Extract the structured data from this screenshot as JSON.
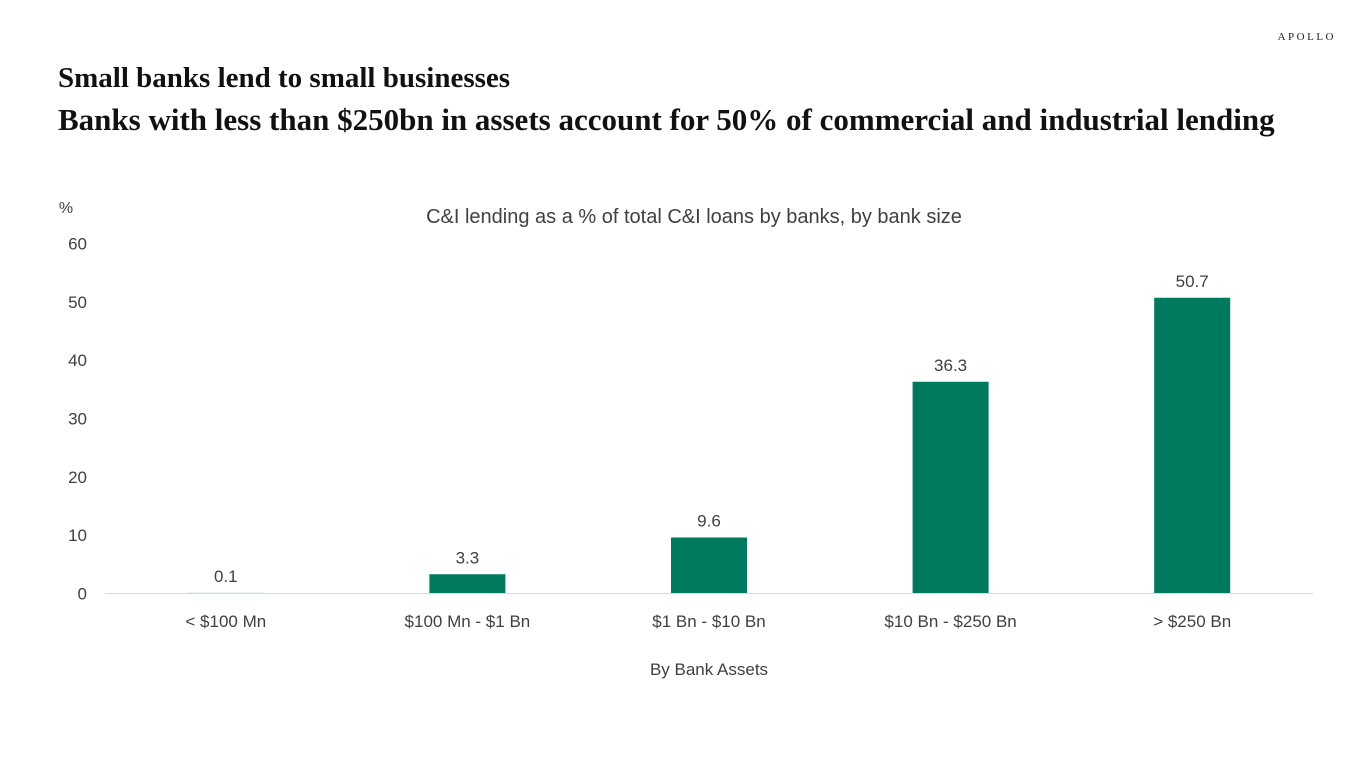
{
  "header": {
    "logo": "APOLLO",
    "title": "Small banks lend to small businesses",
    "subtitle": "Banks with less than $250bn in assets account for 50% of commercial and industrial lending"
  },
  "chart_data": {
    "type": "bar",
    "title": "C&I lending as a % of total C&I loans by banks, by bank size",
    "xlabel": "By Bank Assets",
    "ylabel": "%",
    "categories": [
      "< $100 Mn",
      "$100 Mn - $1 Bn",
      "$1 Bn - $10 Bn",
      "$10 Bn - $250 Bn",
      "> $250 Bn"
    ],
    "values": [
      0.1,
      3.3,
      9.6,
      36.3,
      50.7
    ],
    "data_labels": [
      "0.1",
      "3.3",
      "9.6",
      "36.3",
      "50.7"
    ],
    "yticks": [
      0,
      10,
      20,
      30,
      40,
      50,
      60
    ],
    "ylim": [
      0,
      60
    ],
    "grid": false,
    "bar_color": "#007A5E",
    "axis_color": "#D9D9D9"
  }
}
